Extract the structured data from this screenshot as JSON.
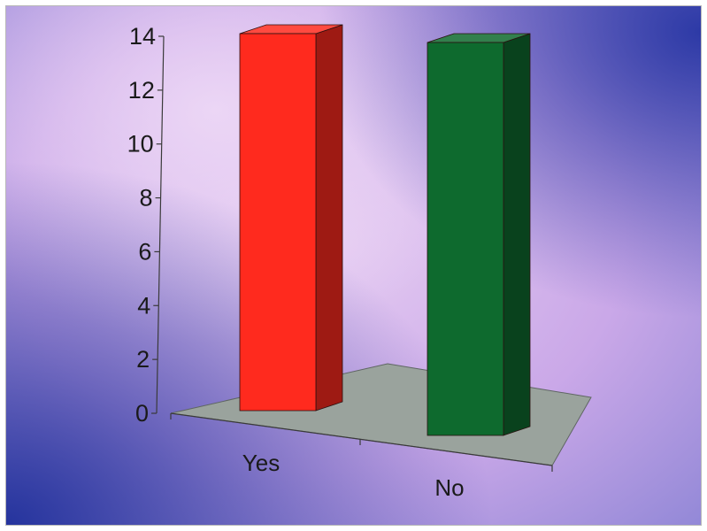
{
  "chart_data": {
    "type": "bar",
    "style": "3d",
    "categories": [
      "Yes",
      "No"
    ],
    "values": [
      14,
      14
    ],
    "ylim": [
      0,
      14
    ],
    "yticks": [
      0,
      2,
      4,
      6,
      8,
      10,
      12,
      14
    ],
    "ytick_labels": [
      "0",
      "2",
      "4",
      "6",
      "8",
      "10",
      "12",
      "14"
    ],
    "grid": false,
    "legend": "none",
    "colors": {
      "Yes": "#ff2a1e",
      "No": "#0e6a2e",
      "floor": "#9aa39d",
      "background_light": "#e2c8f0",
      "background_dark": "#2a3aa8"
    }
  }
}
